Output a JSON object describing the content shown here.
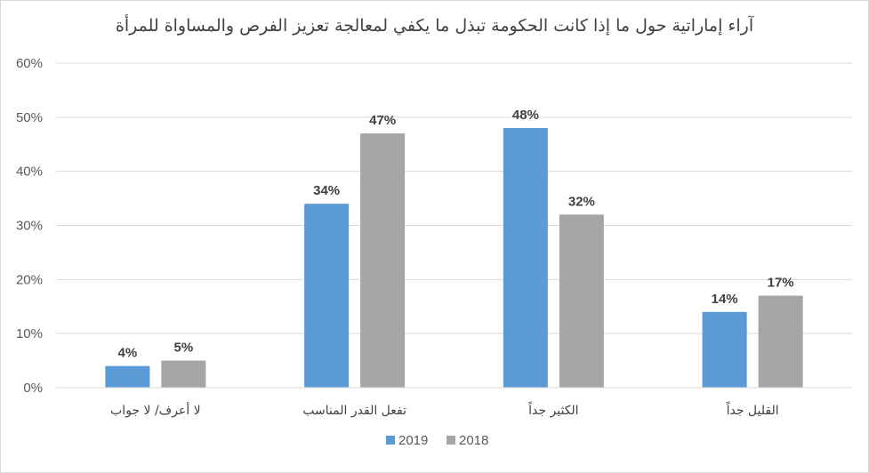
{
  "chart_data": {
    "type": "bar",
    "title": "آراء إماراتية حول ما إذا كانت الحكومة تبذل ما يكفي لمعالجة تعزيز الفرص والمساواة للمرأة",
    "categories": [
      "لا أعرف/ لا جواب",
      "تفعل القدر المناسب",
      "الكثير جداً",
      "القليل جداً"
    ],
    "series": [
      {
        "name": "2019",
        "values": [
          4,
          34,
          48,
          14
        ],
        "labels": [
          "4%",
          "34%",
          "48%",
          "14%"
        ],
        "color": "#5b9bd5"
      },
      {
        "name": "2018",
        "values": [
          5,
          47,
          32,
          17
        ],
        "labels": [
          "5%",
          "47%",
          "32%",
          "17%"
        ],
        "color": "#a5a5a5"
      }
    ],
    "ylim": [
      0,
      60
    ],
    "yticks": [
      {
        "value": 0,
        "label": "0%"
      },
      {
        "value": 10,
        "label": "10%"
      },
      {
        "value": 20,
        "label": "20%"
      },
      {
        "value": 30,
        "label": "30%"
      },
      {
        "value": 40,
        "label": "40%"
      },
      {
        "value": 50,
        "label": "50%"
      },
      {
        "value": 60,
        "label": "60%"
      }
    ],
    "grid": true,
    "gridColor": "#d9d9d9",
    "legend": "bottom"
  }
}
